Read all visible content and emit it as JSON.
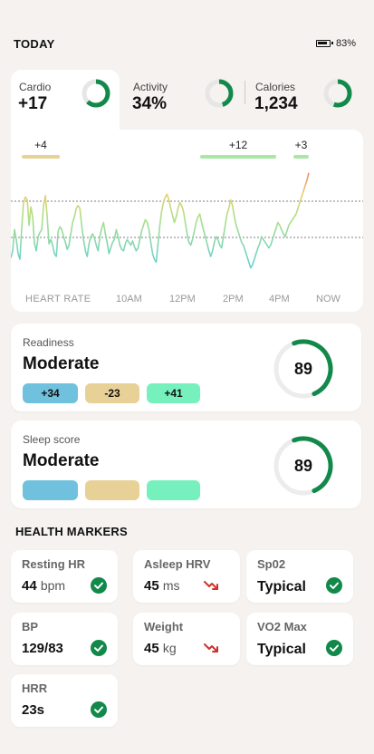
{
  "header": {
    "title": "TODAY",
    "battery": "83%"
  },
  "metrics": [
    {
      "label": "Cardio",
      "value": "+17",
      "ring": 0.62
    },
    {
      "label": "Activity",
      "value": "34%",
      "ring": 0.45
    },
    {
      "label": "Calories",
      "value": "1,234",
      "ring": 0.55
    }
  ],
  "chart_data": {
    "type": "line",
    "series_label": "HEART RATE",
    "x_ticks": [
      "10AM",
      "12PM",
      "2PM",
      "4PM",
      "NOW"
    ],
    "annotations": [
      {
        "label": "+4",
        "color": "#e8d196"
      },
      {
        "label": "+12",
        "color": "#a9e7a6"
      },
      {
        "label": "+3",
        "color": "#a9e7a6"
      }
    ],
    "reference_lines": 2,
    "values": [
      35,
      40,
      55,
      48,
      38,
      34,
      56,
      74,
      78,
      76,
      58,
      71,
      64,
      45,
      40,
      50,
      53,
      55,
      72,
      79,
      64,
      45,
      48,
      44,
      38,
      36,
      54,
      57,
      55,
      50,
      46,
      41,
      44,
      52,
      60,
      64,
      70,
      72,
      70,
      58,
      48,
      40,
      36,
      45,
      50,
      52,
      49,
      44,
      40,
      50,
      56,
      60,
      52,
      46,
      38,
      42,
      46,
      48,
      55,
      50,
      44,
      41,
      40,
      45,
      48,
      46,
      44,
      47,
      43,
      40,
      42,
      48,
      54,
      58,
      62,
      60,
      55,
      46,
      38,
      34,
      32,
      45,
      58,
      68,
      74,
      78,
      80,
      76,
      70,
      65,
      60,
      64,
      70,
      74,
      72,
      68,
      60,
      52,
      46,
      44,
      48,
      54,
      60,
      64,
      66,
      60,
      55,
      50,
      45,
      40,
      36,
      40,
      46,
      50,
      48,
      44,
      42,
      50,
      58,
      66,
      70,
      76,
      72,
      64,
      58,
      54,
      50,
      46,
      44,
      40,
      36,
      32,
      28,
      30,
      34,
      38,
      42,
      45,
      50,
      48,
      46,
      44,
      42,
      44,
      48,
      52,
      56,
      60,
      58,
      55,
      52,
      50,
      54,
      58,
      60,
      62,
      64,
      66,
      70,
      74,
      78,
      82,
      86,
      90,
      95
    ]
  },
  "readiness": {
    "label": "Readiness",
    "status": "Moderate",
    "score": "89",
    "pills": [
      "+34",
      "-23",
      "+41"
    ],
    "gauge": 0.89
  },
  "sleep": {
    "label": "Sleep score",
    "status": "Moderate",
    "score": "89",
    "gauge": 0.89
  },
  "health_markers": {
    "title": "HEALTH MARKERS",
    "items": [
      {
        "label": "Resting HR",
        "value": "44",
        "unit": "bpm",
        "icon": "check-icon"
      },
      {
        "label": "Asleep HRV",
        "value": "45",
        "unit": "ms",
        "icon": "trend-down-icon"
      },
      {
        "label": "Sp02",
        "value": "Typical",
        "unit": "",
        "icon": "check-icon"
      },
      {
        "label": "BP",
        "value": "129/83",
        "unit": "",
        "icon": "check-icon"
      },
      {
        "label": "Weight",
        "value": "45",
        "unit": "kg",
        "icon": "trend-down-icon"
      },
      {
        "label": "VO2 Max",
        "value": "Typical",
        "unit": "",
        "icon": "check-icon"
      },
      {
        "label": "HRR",
        "value": "23s",
        "unit": "",
        "icon": "check-icon"
      }
    ]
  },
  "colors": {
    "accent_green": "#12894a",
    "ring_track": "#e6e6e6",
    "down_red": "#d0312d"
  }
}
